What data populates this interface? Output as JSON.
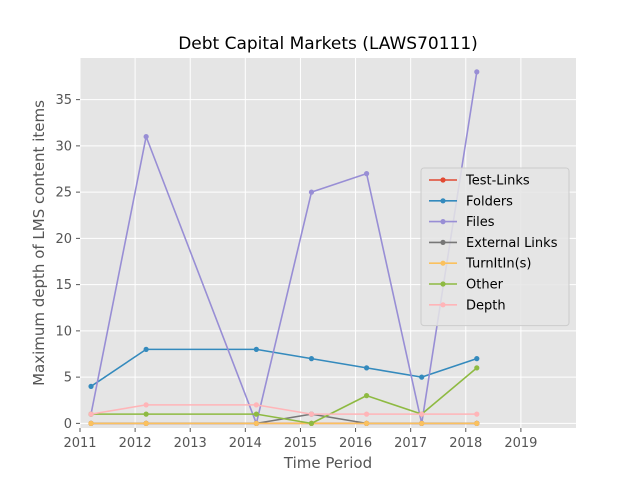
{
  "chart_data": {
    "type": "line",
    "title": "Debt Capital Markets (LAWS70111)",
    "xlabel": "Time Period",
    "ylabel": "Maximum depth of LMS content items",
    "xlim": [
      2011,
      2020
    ],
    "ylim": [
      -0.5,
      39.5
    ],
    "xticks": [
      "2011",
      "2012",
      "2013",
      "2014",
      "2015",
      "2016",
      "2017",
      "2018",
      "2019"
    ],
    "yticks": [
      "0",
      "5",
      "10",
      "15",
      "20",
      "25",
      "30",
      "35"
    ],
    "grid": true,
    "legend_position": "center-right",
    "x": [
      2011.2,
      2012.2,
      2014.2,
      2015.2,
      2016.2,
      2017.2,
      2018.2
    ],
    "series": [
      {
        "name": "Test-Links",
        "color": "#E24A33",
        "values": [
          0,
          0,
          0,
          0,
          0,
          0,
          0
        ]
      },
      {
        "name": "Folders",
        "color": "#348ABD",
        "values": [
          4,
          8,
          8,
          7,
          6,
          5,
          7
        ]
      },
      {
        "name": "Files",
        "color": "#988ED5",
        "values": [
          1,
          31,
          0,
          25,
          27,
          0,
          38
        ]
      },
      {
        "name": "External Links",
        "color": "#777777",
        "values": [
          0,
          0,
          0,
          1,
          0,
          0,
          0
        ]
      },
      {
        "name": "TurnItIn(s)",
        "color": "#FBC15E",
        "values": [
          0,
          0,
          0,
          0,
          0,
          0,
          0
        ]
      },
      {
        "name": "Other",
        "color": "#8EBA42",
        "values": [
          1,
          1,
          1,
          0,
          3,
          1,
          6
        ]
      },
      {
        "name": "Depth",
        "color": "#FFB5B8",
        "values": [
          1,
          2,
          2,
          1,
          1,
          1,
          1
        ]
      }
    ]
  }
}
